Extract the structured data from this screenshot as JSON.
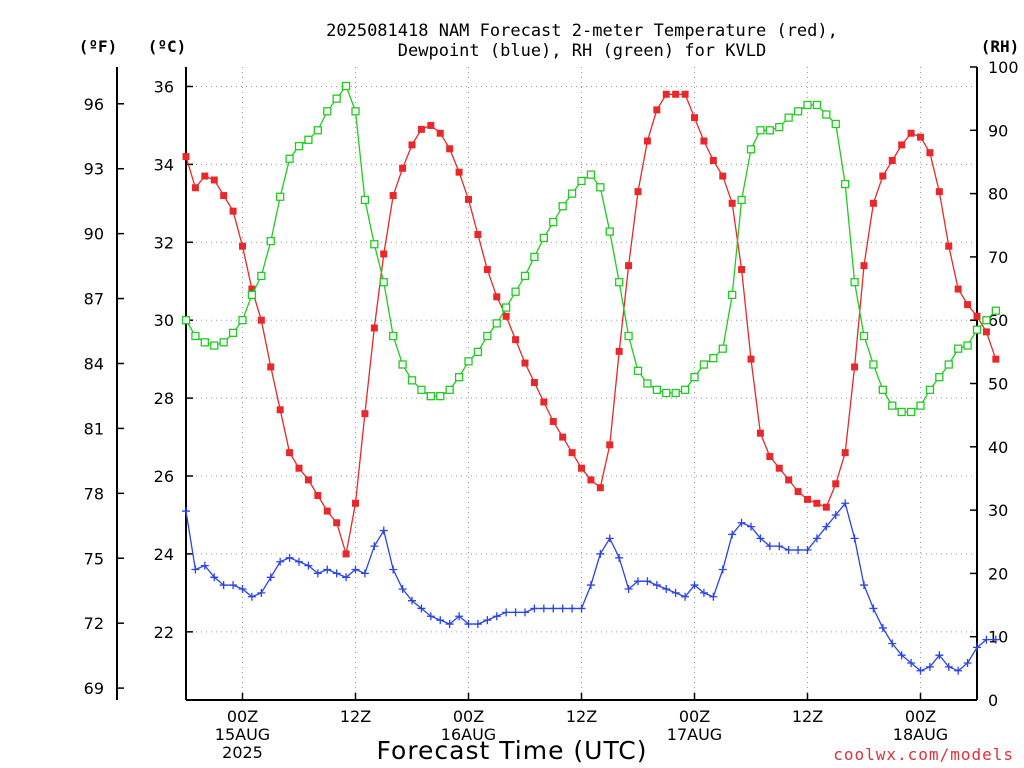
{
  "page": {
    "title_line1": "2025081418 NAM Forecast 2-meter Temperature (red),",
    "title_line2": "Dewpoint (blue), RH (green) for KVLD",
    "unit_f": "(ºF)",
    "unit_c": "(ºC)",
    "unit_rh": "(RH)",
    "credit": "coolwx.com/models"
  },
  "chart_data": {
    "type": "line",
    "title": "2025081418 NAM Forecast 2-meter Temperature (red), Dewpoint (blue), RH (green) for KVLD",
    "xlabel": "Forecast Time (UTC)",
    "x_start": "2025-08-14 18Z",
    "x_step_hours": 1,
    "x_hours_range": [
      0,
      84
    ],
    "x_ticks": [
      {
        "hour": 6,
        "lines": [
          "00Z",
          "15AUG",
          "2025"
        ]
      },
      {
        "hour": 18,
        "lines": [
          "12Z"
        ]
      },
      {
        "hour": 30,
        "lines": [
          "00Z",
          "16AUG"
        ]
      },
      {
        "hour": 42,
        "lines": [
          "12Z"
        ]
      },
      {
        "hour": 54,
        "lines": [
          "00Z",
          "17AUG"
        ]
      },
      {
        "hour": 66,
        "lines": [
          "12Z"
        ]
      },
      {
        "hour": 78,
        "lines": [
          "00Z",
          "18AUG"
        ]
      }
    ],
    "y_left_celsius": {
      "label": "(ºC)",
      "ticks": [
        22,
        24,
        26,
        28,
        30,
        32,
        34,
        36
      ],
      "range": [
        20.25,
        36.5
      ]
    },
    "y_left_fahrenheit": {
      "label": "(ºF)",
      "ticks": [
        69,
        72,
        75,
        78,
        81,
        84,
        87,
        90,
        93,
        96
      ]
    },
    "y_right_rh": {
      "label": "(RH)",
      "ticks": [
        0,
        10,
        20,
        30,
        40,
        50,
        60,
        70,
        80,
        90,
        100
      ],
      "range": [
        0,
        100
      ]
    },
    "grid": true,
    "series": [
      {
        "name": "Temperature",
        "axis": "celsius",
        "color": "#e8282a",
        "marker": "filled-square",
        "values": [
          34.2,
          33.4,
          33.7,
          33.6,
          33.2,
          32.8,
          31.9,
          30.8,
          30.0,
          28.8,
          27.7,
          26.6,
          26.2,
          25.9,
          25.5,
          25.1,
          24.8,
          24.0,
          25.3,
          27.6,
          29.8,
          31.7,
          33.2,
          33.9,
          34.5,
          34.9,
          35.0,
          34.8,
          34.4,
          33.8,
          33.1,
          32.2,
          31.3,
          30.6,
          30.1,
          29.5,
          28.9,
          28.4,
          27.9,
          27.4,
          27.0,
          26.6,
          26.2,
          25.9,
          25.7,
          26.8,
          29.2,
          31.4,
          33.3,
          34.6,
          35.4,
          35.8,
          35.8,
          35.8,
          35.2,
          34.6,
          34.1,
          33.7,
          33.0,
          31.3,
          29.0,
          27.1,
          26.5,
          26.2,
          25.9,
          25.6,
          25.4,
          25.3,
          25.2,
          25.8,
          26.6,
          28.8,
          31.4,
          33.0,
          33.7,
          34.1,
          34.5,
          34.8,
          34.7,
          34.3,
          33.3,
          31.9,
          30.8,
          30.4,
          30.1,
          29.7,
          29.0
        ]
      },
      {
        "name": "Dewpoint",
        "axis": "celsius",
        "color": "#2a44e6",
        "marker": "plus",
        "values": [
          25.1,
          23.6,
          23.7,
          23.4,
          23.2,
          23.2,
          23.1,
          22.9,
          23.0,
          23.4,
          23.8,
          23.9,
          23.8,
          23.7,
          23.5,
          23.6,
          23.5,
          23.4,
          23.6,
          23.5,
          24.2,
          24.6,
          23.6,
          23.1,
          22.8,
          22.6,
          22.4,
          22.3,
          22.2,
          22.4,
          22.2,
          22.2,
          22.3,
          22.4,
          22.5,
          22.5,
          22.5,
          22.6,
          22.6,
          22.6,
          22.6,
          22.6,
          22.6,
          23.2,
          24.0,
          24.4,
          23.9,
          23.1,
          23.3,
          23.3,
          23.2,
          23.1,
          23.0,
          22.9,
          23.2,
          23.0,
          22.9,
          23.6,
          24.5,
          24.8,
          24.7,
          24.4,
          24.2,
          24.2,
          24.1,
          24.1,
          24.1,
          24.4,
          24.7,
          25.0,
          25.3,
          24.4,
          23.2,
          22.6,
          22.1,
          21.7,
          21.4,
          21.2,
          21.0,
          21.1,
          21.4,
          21.1,
          21.0,
          21.2,
          21.6,
          21.8,
          21.8
        ]
      },
      {
        "name": "RH",
        "axis": "rh",
        "color": "#1fcc1f",
        "marker": "open-square",
        "values": [
          60,
          57.5,
          56.5,
          56,
          56.5,
          58,
          60,
          64,
          67,
          72.5,
          79.5,
          85.5,
          87.5,
          88.5,
          90,
          93,
          95,
          97,
          93,
          79,
          72,
          66,
          57.5,
          53,
          50.5,
          49,
          48,
          48,
          49,
          51,
          53.5,
          55,
          57.5,
          59.5,
          62,
          64.5,
          67,
          70,
          73,
          75.5,
          78,
          80,
          82,
          83,
          81,
          74,
          66,
          57.5,
          52,
          50,
          49,
          48.5,
          48.5,
          49,
          51,
          53,
          54,
          55.5,
          64,
          79,
          87,
          90,
          90,
          90.5,
          92,
          93,
          94,
          94,
          92.5,
          91,
          81.5,
          66,
          57.5,
          53,
          49,
          46.5,
          45.5,
          45.5,
          46.5,
          49,
          51,
          53,
          55.5,
          56,
          58.5,
          60,
          61.5
        ]
      }
    ]
  }
}
